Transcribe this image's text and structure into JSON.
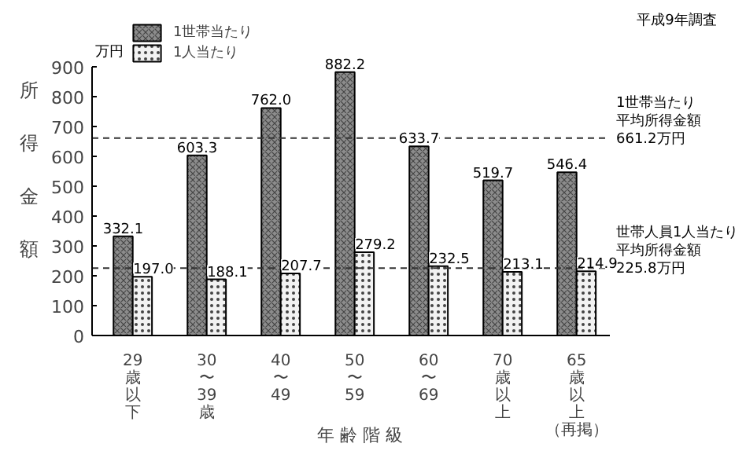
{
  "chart_data": {
    "type": "bar",
    "title": "平成9年調査",
    "ylabel": "所得金額",
    "xlabel": "年齢階級",
    "annotations": [
      "万円"
    ],
    "categories": [
      "29歳以下",
      "30〜39歳",
      "40〜49",
      "50〜59",
      "60〜69",
      "70歳以上",
      "65歳以上（再掲）"
    ],
    "series": [
      {
        "name": "1世帯当たり",
        "color": "#8c8c8c",
        "values": [
          332.1,
          603.3,
          762.0,
          882.2,
          633.7,
          519.7,
          546.4
        ],
        "value_labels": [
          "332.1",
          "603.3",
          "762.0",
          "882.2",
          "633.7",
          "519.7",
          "546.4"
        ]
      },
      {
        "name": "1人当たり",
        "color": "#f2f2f2",
        "values": [
          197.0,
          188.1,
          207.7,
          279.2,
          232.5,
          213.1,
          214.9
        ],
        "value_labels": [
          "197.0",
          "188.1",
          "207.7",
          "279.2",
          "232.5",
          "213.1",
          "214.9"
        ]
      }
    ],
    "ylim": [
      0,
      900
    ],
    "yticks": [
      0,
      100,
      200,
      300,
      400,
      500,
      600,
      700,
      800,
      900
    ],
    "ref_lines": [
      {
        "axis": "y",
        "value": 661.2,
        "label": "1世帯当たり平均所得金額661.2万円",
        "line_style": "dashed"
      },
      {
        "axis": "y",
        "value": 225.8,
        "label": "世帯人員1人当たり平均所得金額225.8万円",
        "line_style": "dashed"
      }
    ],
    "grid": false,
    "legend": "top left"
  }
}
